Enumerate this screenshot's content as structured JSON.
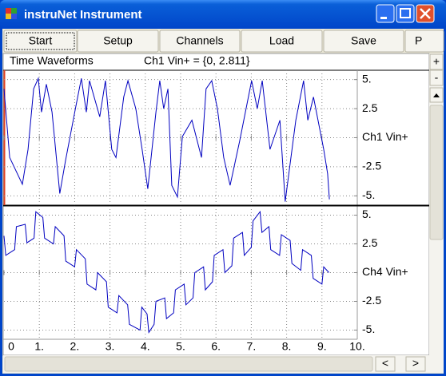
{
  "window": {
    "title": "instruNet Instrument"
  },
  "toolbar": {
    "buttons": [
      "Start",
      "Setup",
      "Channels",
      "Load",
      "Save",
      "P"
    ]
  },
  "header": {
    "title": "Time Waveforms",
    "readout": "Ch1 Vin+ = {0, 2.811}"
  },
  "side_buttons": [
    "+",
    "-"
  ],
  "scroll_buttons": [
    "<",
    ">"
  ],
  "chart_data": [
    {
      "type": "line",
      "color": "#0000c0",
      "x": [
        0,
        0.16,
        0.52,
        0.68,
        0.84,
        0.97,
        1.06,
        1.2,
        1.36,
        1.58,
        1.74,
        2.04,
        2.19,
        2.33,
        2.42,
        2.71,
        2.87,
        3.05,
        3.17,
        3.39,
        3.51,
        3.73,
        3.91,
        4.07,
        4.3,
        4.41,
        4.52,
        4.64,
        4.75,
        4.91,
        5.05,
        5.32,
        5.59,
        5.72,
        5.88,
        6.04,
        6.22,
        6.4,
        6.67,
        7.01,
        7.17,
        7.31,
        7.53,
        7.81,
        7.96,
        8.26,
        8.48,
        8.6,
        8.76,
        9.05,
        9.16,
        9.21
      ],
      "values": [
        4.2,
        -1.7,
        -4.0,
        -1.0,
        4.2,
        5.1,
        2.2,
        4.6,
        2.2,
        -4.8,
        -2.0,
        2.8,
        5.1,
        2.2,
        4.9,
        1.8,
        4.9,
        -1.0,
        -1.7,
        3.5,
        4.9,
        2.5,
        -1.0,
        -4.4,
        2.2,
        4.9,
        2.5,
        4.2,
        -4.1,
        -5.1,
        0.1,
        1.5,
        -1.7,
        4.2,
        4.9,
        2.5,
        -1.7,
        -4.1,
        -0.3,
        4.9,
        2.5,
        4.9,
        -1.0,
        1.5,
        -5.5,
        1.5,
        4.9,
        1.5,
        3.5,
        -1.0,
        -3.1,
        -5.3
      ],
      "xlim": [
        0,
        10
      ],
      "ylim": [
        -5.8,
        5.8
      ],
      "yticks": [
        {
          "value": 5,
          "label": "5."
        },
        2.5,
        {
          "value": 0,
          "label": "Ch1 Vin+"
        },
        -2.5,
        {
          "value": -5,
          "label": "-5."
        }
      ],
      "grid": true
    },
    {
      "type": "line",
      "color": "#0000c0",
      "x": [
        0,
        0.05,
        0.3,
        0.35,
        0.6,
        0.65,
        0.85,
        0.9,
        1.1,
        1.15,
        1.4,
        1.45,
        1.7,
        1.75,
        2.0,
        2.05,
        2.3,
        2.35,
        2.6,
        2.65,
        2.9,
        2.95,
        3.2,
        3.25,
        3.5,
        3.55,
        3.85,
        3.9,
        4.05,
        4.1,
        4.25,
        4.3,
        4.55,
        4.6,
        4.8,
        4.85,
        5.1,
        5.15,
        5.35,
        5.4,
        5.65,
        5.7,
        5.9,
        5.95,
        6.2,
        6.25,
        6.45,
        6.5,
        6.75,
        6.8,
        7.0,
        7.05,
        7.25,
        7.3,
        7.5,
        7.55,
        7.8,
        7.85,
        8.1,
        8.15,
        8.4,
        8.45,
        8.7,
        8.75,
        9.0,
        9.05,
        9.2
      ],
      "values": [
        3.2,
        1.5,
        2.0,
        4.0,
        4.2,
        2.6,
        3.0,
        5.3,
        4.8,
        3.0,
        2.5,
        4.0,
        3.2,
        1.0,
        0.5,
        2.0,
        1.2,
        -1.0,
        -1.5,
        0.0,
        -0.8,
        -3.0,
        -3.5,
        -2.0,
        -2.8,
        -4.5,
        -5.0,
        -3.0,
        -3.6,
        -5.2,
        -4.5,
        -2.5,
        -2.2,
        -4.0,
        -3.5,
        -1.5,
        -1.0,
        -2.8,
        -2.2,
        0.0,
        0.5,
        -1.5,
        -0.8,
        1.5,
        2.0,
        0.0,
        0.6,
        3.0,
        3.5,
        1.5,
        2.2,
        4.5,
        5.3,
        3.5,
        4.0,
        2.0,
        1.5,
        3.3,
        2.8,
        0.8,
        0.2,
        2.0,
        1.5,
        -0.5,
        -1.0,
        0.5,
        0.0
      ],
      "xlim": [
        0,
        10
      ],
      "ylim": [
        -5.8,
        5.8
      ],
      "yticks": [
        {
          "value": 5,
          "label": "5."
        },
        2.5,
        {
          "value": 0,
          "label": "Ch4 Vin+"
        },
        -2.5,
        {
          "value": -5,
          "label": "-5."
        }
      ],
      "xticks": [
        0,
        {
          "value": 1,
          "label": "1."
        },
        {
          "value": 2,
          "label": "2."
        },
        {
          "value": 3,
          "label": "3."
        },
        {
          "value": 4,
          "label": "4."
        },
        {
          "value": 5,
          "label": "5."
        },
        {
          "value": 6,
          "label": "6."
        },
        {
          "value": 7,
          "label": "7."
        },
        {
          "value": 8,
          "label": "8."
        },
        {
          "value": 9,
          "label": "9."
        },
        {
          "value": 10,
          "label": "10."
        }
      ],
      "grid": true
    }
  ]
}
